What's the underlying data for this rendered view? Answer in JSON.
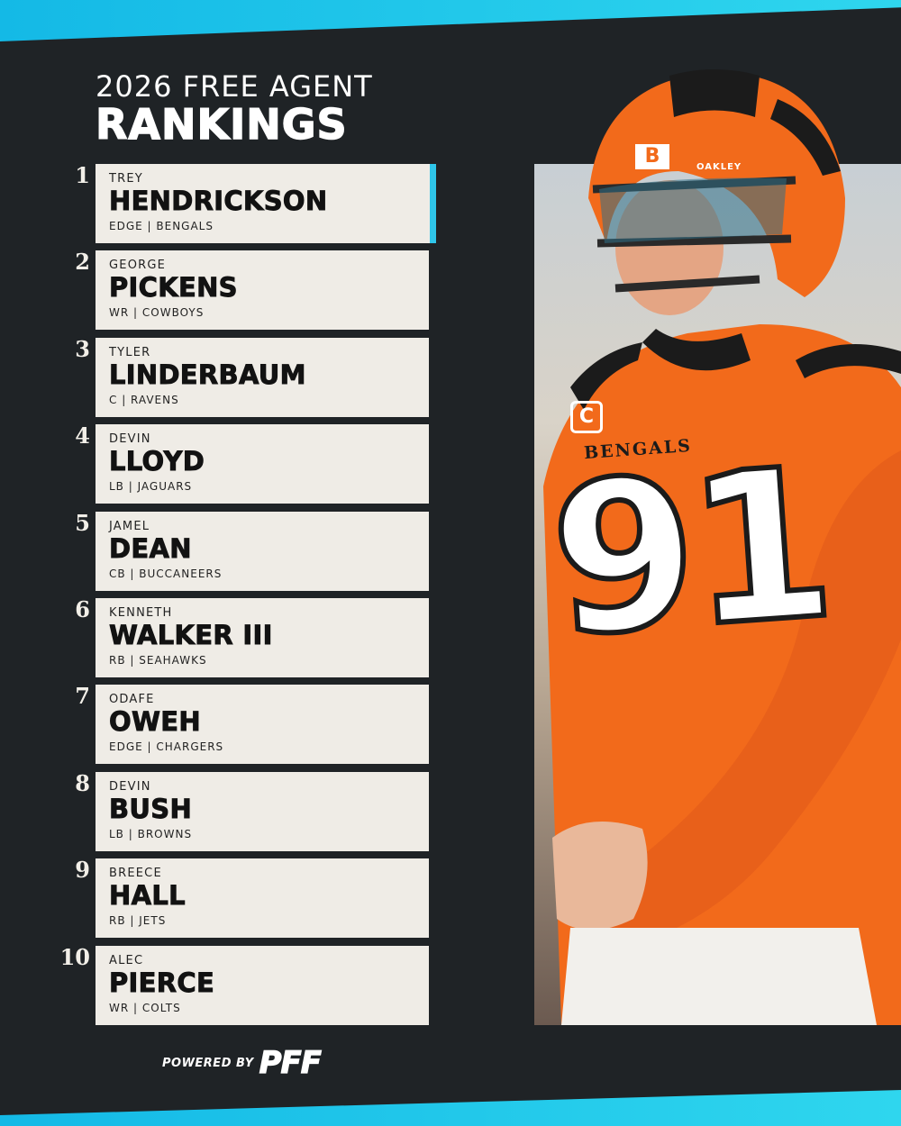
{
  "header": {
    "title_line1": "2026 FREE AGENT",
    "title_line2": "RANKINGS"
  },
  "rankings": [
    {
      "rank": "1",
      "first": "TREY",
      "last": "HENDRICKSON",
      "meta": "EDGE | BENGALS",
      "highlight": true
    },
    {
      "rank": "2",
      "first": "GEORGE",
      "last": "PICKENS",
      "meta": "WR | COWBOYS"
    },
    {
      "rank": "3",
      "first": "TYLER",
      "last": "LINDERBAUM",
      "meta": "C | RAVENS"
    },
    {
      "rank": "4",
      "first": "DEVIN",
      "last": "LLOYD",
      "meta": "LB | JAGUARS"
    },
    {
      "rank": "5",
      "first": "JAMEL",
      "last": "DEAN",
      "meta": "CB | BUCCANEERS"
    },
    {
      "rank": "6",
      "first": "KENNETH",
      "last": "WALKER III",
      "meta": "RB | SEAHAWKS"
    },
    {
      "rank": "7",
      "first": "ODAFE",
      "last": "OWEH",
      "meta": "EDGE | CHARGERS"
    },
    {
      "rank": "8",
      "first": "DEVIN",
      "last": "BUSH",
      "meta": "LB | BROWNS"
    },
    {
      "rank": "9",
      "first": "BREECE",
      "last": "HALL",
      "meta": "RB | JETS"
    },
    {
      "rank": "10",
      "first": "ALEC",
      "last": "PIERCE",
      "meta": "WR | COLTS"
    }
  ],
  "player_photo": {
    "jersey_number": "91",
    "jersey_wordmark": "BENGALS",
    "captain_patch": "C",
    "helmet_logo": "B",
    "helmet_brand": "OAKLEY",
    "icon": "football-player-photo"
  },
  "footer": {
    "powered_label": "POWERED BY",
    "brand": "PFF"
  },
  "colors": {
    "background": "#1f2326",
    "accent": "#2fc6ea",
    "card": "#efece6",
    "jersey_orange": "#f26a1b"
  }
}
